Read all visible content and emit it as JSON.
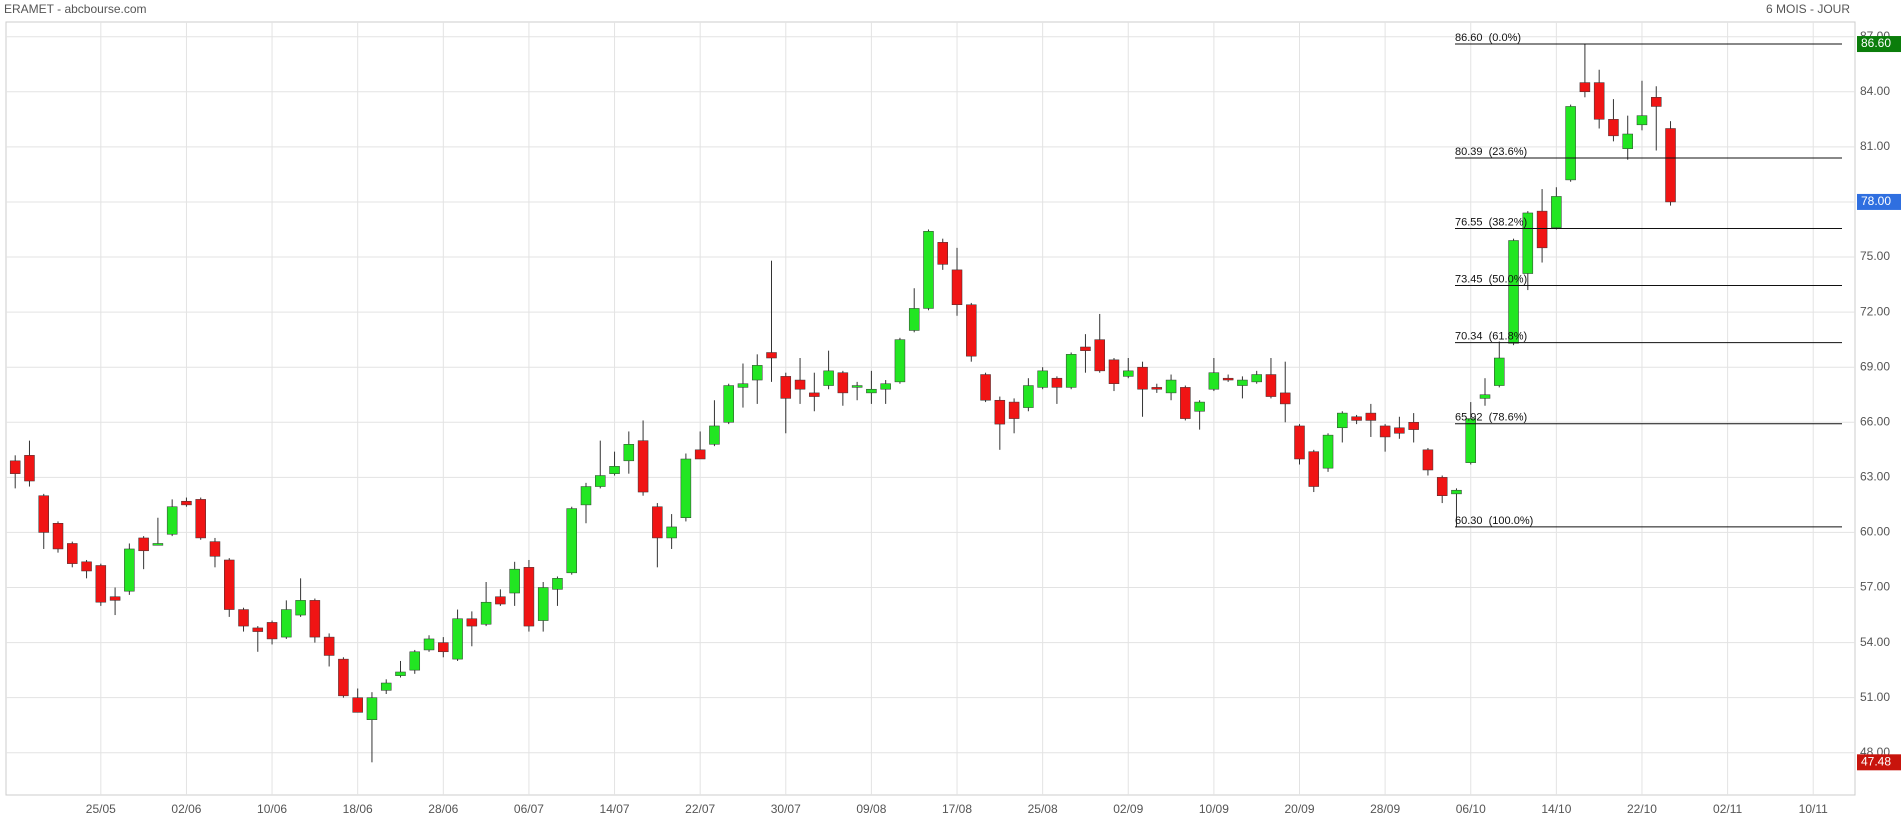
{
  "chart_data": {
    "type": "candlestick",
    "title": "ERAMET - abcbourse.com",
    "period": "6 MOIS - JOUR",
    "categories": [
      null,
      null,
      null,
      null,
      null,
      null,
      "25/05",
      null,
      null,
      null,
      null,
      null,
      "02/06",
      null,
      null,
      null,
      null,
      null,
      "10/06",
      null,
      null,
      null,
      null,
      null,
      "18/06",
      null,
      null,
      null,
      null,
      null,
      "28/06",
      null,
      null,
      null,
      null,
      null,
      "06/07",
      null,
      null,
      null,
      null,
      null,
      "14/07",
      null,
      null,
      null,
      null,
      null,
      "22/07",
      null,
      null,
      null,
      null,
      null,
      "30/07",
      null,
      null,
      null,
      null,
      null,
      "09/08",
      null,
      null,
      null,
      null,
      null,
      "17/08",
      null,
      null,
      null,
      null,
      null,
      "25/08",
      null,
      null,
      null,
      null,
      null,
      "02/09",
      null,
      null,
      null,
      null,
      null,
      "10/09",
      null,
      null,
      null,
      null,
      null,
      "20/09",
      null,
      null,
      null,
      null,
      null,
      "28/09",
      null,
      null,
      null,
      null,
      null,
      "06/10",
      null,
      null,
      null,
      null,
      null,
      "14/10",
      null,
      null,
      null,
      null,
      null,
      "22/10",
      null,
      null,
      null,
      null,
      null,
      "02/11",
      null,
      null,
      null,
      null,
      null,
      "10/11",
      null,
      null,
      null
    ],
    "open": [
      63.9,
      64.2,
      62.0,
      60.5,
      59.4,
      58.4,
      58.2,
      56.5,
      56.8,
      59.7,
      59.3,
      59.9,
      61.7,
      61.8,
      59.5,
      58.5,
      55.8,
      54.8,
      55.1,
      54.3,
      55.5,
      56.3,
      54.3,
      53.1,
      51.0,
      49.8,
      51.4,
      52.2,
      52.5,
      53.6,
      54.0,
      53.1,
      55.3,
      55.0,
      56.5,
      56.7,
      58.1,
      55.2,
      56.9,
      57.8,
      61.5,
      62.5,
      63.2,
      63.9,
      65.0,
      61.4,
      59.7,
      60.8,
      64.5,
      64.8,
      66.0,
      67.9,
      68.3,
      69.8,
      68.5,
      68.3,
      67.6,
      68.0,
      68.7,
      67.9,
      67.6,
      67.8,
      68.2,
      71.0,
      72.2,
      75.8,
      74.3,
      72.4,
      68.6,
      67.2,
      67.1,
      66.8,
      67.9,
      68.4,
      67.9,
      70.1,
      70.5,
      69.4,
      68.5,
      69.0,
      67.9,
      67.6,
      67.9,
      66.6,
      67.8,
      68.4,
      68.0,
      68.2,
      68.6,
      67.6,
      65.8,
      64.4,
      63.5,
      65.7,
      66.3,
      66.5,
      65.8,
      65.7,
      66.0,
      64.5,
      63.0,
      62.1,
      63.8,
      67.3,
      68.0,
      70.3,
      74.1,
      77.5,
      76.6,
      79.2,
      84.5,
      84.5,
      82.5,
      80.9,
      82.2,
      83.7,
      82.0,
      null,
      null,
      null,
      null,
      null,
      null,
      null,
      null,
      null,
      null,
      null,
      null,
      null
    ],
    "high": [
      64.2,
      65.0,
      62.1,
      60.6,
      59.5,
      58.5,
      58.3,
      57.0,
      59.4,
      59.8,
      60.8,
      61.8,
      61.9,
      61.9,
      59.7,
      58.6,
      55.9,
      54.9,
      55.2,
      56.3,
      57.5,
      56.4,
      54.5,
      53.2,
      51.5,
      51.3,
      52.0,
      53.0,
      53.6,
      54.4,
      54.3,
      55.8,
      55.7,
      57.3,
      56.9,
      58.4,
      58.5,
      57.3,
      57.6,
      61.4,
      62.7,
      65.0,
      64.4,
      65.5,
      66.1,
      61.6,
      61.0,
      64.3,
      65.5,
      67.2,
      68.1,
      69.2,
      69.7,
      74.8,
      68.7,
      69.5,
      68.7,
      69.9,
      68.8,
      68.2,
      68.8,
      68.3,
      70.6,
      73.3,
      76.5,
      76.0,
      75.5,
      72.5,
      68.7,
      67.4,
      67.3,
      68.4,
      69.0,
      68.5,
      69.8,
      70.8,
      71.9,
      69.5,
      69.5,
      69.3,
      68.1,
      68.6,
      68.0,
      67.2,
      69.5,
      68.6,
      68.5,
      68.8,
      69.5,
      69.3,
      65.9,
      64.5,
      65.4,
      66.6,
      66.4,
      67.0,
      65.9,
      66.3,
      66.5,
      64.6,
      63.1,
      62.4,
      67.1,
      68.4,
      70.4,
      76.0,
      77.5,
      78.7,
      78.8,
      83.3,
      86.6,
      85.2,
      83.6,
      82.7,
      84.6,
      84.3,
      82.4,
      null,
      null,
      null,
      null,
      null,
      null,
      null,
      null,
      null,
      null,
      null,
      null,
      null
    ],
    "low": [
      62.4,
      62.5,
      59.1,
      58.9,
      58.1,
      57.5,
      56.0,
      55.5,
      56.6,
      58.0,
      59.3,
      59.8,
      61.4,
      59.6,
      58.1,
      55.4,
      54.6,
      53.5,
      53.9,
      54.2,
      55.4,
      54.0,
      52.7,
      51.0,
      50.2,
      47.48,
      51.2,
      52.1,
      52.3,
      53.5,
      53.2,
      53.0,
      53.8,
      54.9,
      56.0,
      56.0,
      54.6,
      54.6,
      56.0,
      57.7,
      60.5,
      62.4,
      63.1,
      63.2,
      62.0,
      58.1,
      59.1,
      60.6,
      64.0,
      64.7,
      65.9,
      66.8,
      67.0,
      68.2,
      65.4,
      67.0,
      66.6,
      67.8,
      66.9,
      67.2,
      67.0,
      67.0,
      68.1,
      70.9,
      72.1,
      74.3,
      71.8,
      69.3,
      67.1,
      64.5,
      65.4,
      66.6,
      67.8,
      67.0,
      67.8,
      68.7,
      68.7,
      67.7,
      68.4,
      66.3,
      67.6,
      67.2,
      66.1,
      65.6,
      67.7,
      68.2,
      67.3,
      68.1,
      67.3,
      66.0,
      63.7,
      62.2,
      63.3,
      64.9,
      65.9,
      65.2,
      64.4,
      65.1,
      64.9,
      63.1,
      61.6,
      60.3,
      63.7,
      66.9,
      67.9,
      70.2,
      73.2,
      74.7,
      76.5,
      79.1,
      83.7,
      82.0,
      81.3,
      80.3,
      81.9,
      80.8,
      77.8,
      null,
      null,
      null,
      null,
      null,
      null,
      null,
      null,
      null,
      null,
      null,
      null,
      null
    ],
    "close": [
      63.2,
      62.8,
      60.0,
      59.1,
      58.3,
      57.9,
      56.2,
      56.3,
      59.1,
      59.0,
      59.4,
      61.4,
      61.5,
      59.7,
      58.7,
      55.8,
      54.9,
      54.6,
      54.2,
      55.8,
      56.3,
      54.3,
      53.3,
      51.1,
      50.2,
      51.0,
      51.8,
      52.4,
      53.5,
      54.2,
      53.5,
      55.3,
      54.9,
      56.2,
      56.1,
      58.0,
      54.9,
      57.0,
      57.5,
      61.3,
      62.5,
      63.1,
      63.6,
      64.8,
      62.2,
      59.7,
      60.3,
      64.0,
      64.0,
      65.8,
      68.0,
      68.1,
      69.1,
      69.5,
      67.3,
      67.8,
      67.4,
      68.8,
      67.6,
      68.0,
      67.8,
      68.1,
      70.5,
      72.2,
      76.4,
      74.6,
      72.4,
      69.6,
      67.2,
      65.9,
      66.2,
      68.0,
      68.8,
      67.9,
      69.7,
      69.9,
      68.8,
      68.1,
      68.8,
      67.8,
      67.8,
      68.3,
      66.2,
      67.1,
      68.7,
      68.3,
      68.3,
      68.6,
      67.4,
      67.0,
      64.0,
      62.5,
      65.3,
      66.5,
      66.1,
      66.1,
      65.2,
      65.4,
      65.6,
      63.4,
      62.0,
      62.3,
      66.2,
      67.5,
      69.5,
      75.9,
      77.4,
      75.5,
      78.3,
      83.2,
      84.0,
      82.5,
      81.6,
      81.7,
      82.7,
      83.2,
      78.0,
      null,
      null,
      null,
      null,
      null,
      null,
      null,
      null,
      null,
      null,
      null,
      null,
      null
    ],
    "up_color": "#22e622",
    "down_color": "#f01414",
    "wick_color": "#333333",
    "ylim": [
      45.7,
      87.8
    ],
    "yticks": [
      {
        "value": 48,
        "label": "48.00"
      },
      {
        "value": 51,
        "label": "51.00"
      },
      {
        "value": 54,
        "label": "54.00"
      },
      {
        "value": 57,
        "label": "57.00"
      },
      {
        "value": 60,
        "label": "60.00"
      },
      {
        "value": 63,
        "label": "63.00"
      },
      {
        "value": 66,
        "label": "66.00"
      },
      {
        "value": 69,
        "label": "69.00"
      },
      {
        "value": 72,
        "label": "72.00"
      },
      {
        "value": 75,
        "label": "75.00"
      },
      {
        "value": 78,
        "label": "78.00"
      },
      {
        "value": 81,
        "label": "81.00"
      },
      {
        "value": 84,
        "label": "84.00"
      },
      {
        "value": 87,
        "label": "87.00"
      }
    ],
    "grid": true,
    "fibonacci": [
      {
        "value": 86.6,
        "label": "86.60  (0.0%)"
      },
      {
        "value": 80.39,
        "label": "80.39  (23.6%)"
      },
      {
        "value": 76.55,
        "label": "76.55  (38.2%)"
      },
      {
        "value": 73.45,
        "label": "73.45  (50.0%)"
      },
      {
        "value": 70.34,
        "label": "70.34  (61.8%)"
      },
      {
        "value": 65.92,
        "label": "65.92  (78.6%)"
      },
      {
        "value": 60.3,
        "label": "60.30  (100.0%)"
      }
    ],
    "price_markers": [
      {
        "value": 86.6,
        "label": "86.60",
        "color": "#0b7d0b"
      },
      {
        "value": 78.0,
        "label": "78.00",
        "color": "#2f6fe0"
      },
      {
        "value": 47.48,
        "label": "47.48",
        "color": "#c8140c"
      }
    ]
  }
}
